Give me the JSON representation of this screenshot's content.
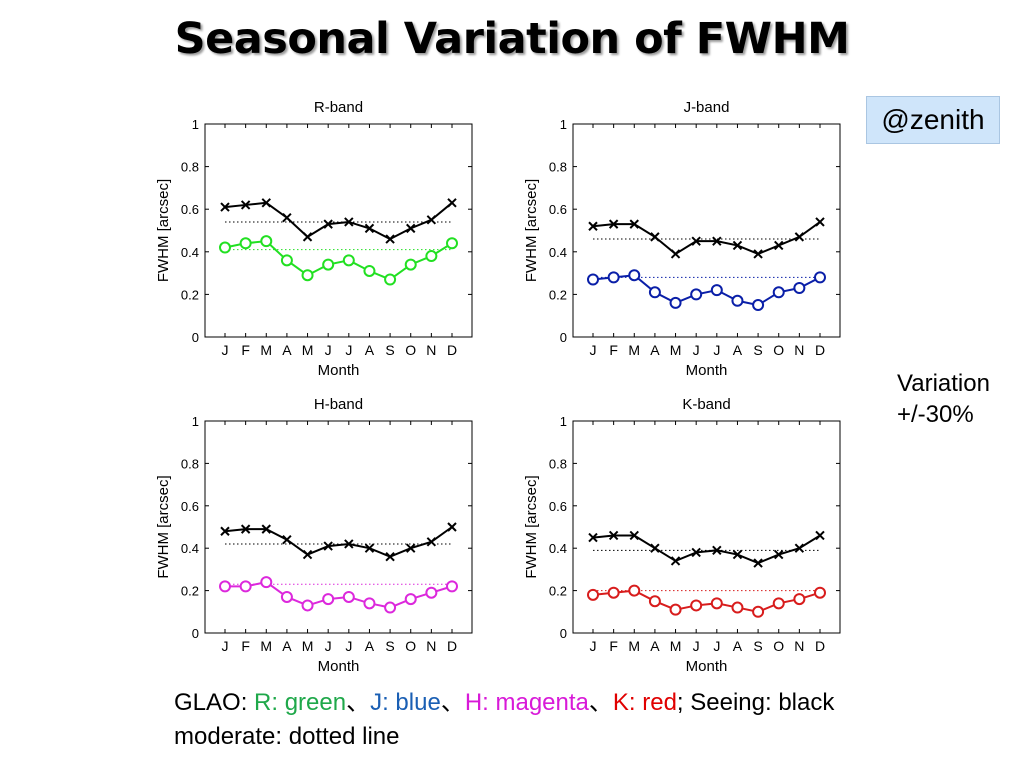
{
  "title": "Seasonal Variation of FWHM",
  "zenith_label": "@zenith",
  "variation": {
    "line1": "Variation",
    "line2": "+/-30%"
  },
  "legend": {
    "prefix": "GLAO: ",
    "r": "R: green",
    "sep1": "、",
    "j": "J: blue",
    "sep2": "、",
    "h": "H: magenta",
    "sep3": "、",
    "k": "K: red",
    "suffix": "; Seeing: black",
    "line2": "moderate:  dotted line"
  },
  "colors": {
    "seeing": "#000000",
    "R": "#22e022",
    "J": "#0a1fa8",
    "H": "#dc28dc",
    "K": "#d81c1c"
  },
  "chart_data": [
    {
      "type": "line",
      "title": "R-band",
      "xlabel": "Month",
      "ylabel": "FWHM [arcsec]",
      "categories": [
        "J",
        "F",
        "M",
        "A",
        "M",
        "J",
        "J",
        "A",
        "S",
        "O",
        "N",
        "D"
      ],
      "ylim": [
        0,
        1
      ],
      "yticks": [
        "0",
        "0.2",
        "0.4",
        "0.6",
        "0.8",
        "1"
      ],
      "series": [
        {
          "role": "seeing",
          "marker": "x",
          "color": "#000000",
          "values": [
            0.61,
            0.62,
            0.63,
            0.56,
            0.47,
            0.53,
            0.54,
            0.51,
            0.46,
            0.51,
            0.55,
            0.63
          ]
        },
        {
          "role": "glao",
          "marker": "o",
          "color": "#22e022",
          "values": [
            0.42,
            0.44,
            0.45,
            0.36,
            0.29,
            0.34,
            0.36,
            0.31,
            0.27,
            0.34,
            0.38,
            0.44
          ]
        }
      ],
      "dotted_lines": [
        {
          "value": 0.54,
          "color": "#000000"
        },
        {
          "value": 0.41,
          "color": "#22e022"
        }
      ]
    },
    {
      "type": "line",
      "title": "J-band",
      "xlabel": "Month",
      "ylabel": "FWHM [arcsec]",
      "categories": [
        "J",
        "F",
        "M",
        "A",
        "M",
        "J",
        "J",
        "A",
        "S",
        "O",
        "N",
        "D"
      ],
      "ylim": [
        0,
        1
      ],
      "yticks": [
        "0",
        "0.2",
        "0.4",
        "0.6",
        "0.8",
        "1"
      ],
      "series": [
        {
          "role": "seeing",
          "marker": "x",
          "color": "#000000",
          "values": [
            0.52,
            0.53,
            0.53,
            0.47,
            0.39,
            0.45,
            0.45,
            0.43,
            0.39,
            0.43,
            0.47,
            0.54
          ]
        },
        {
          "role": "glao",
          "marker": "o",
          "color": "#0a1fa8",
          "values": [
            0.27,
            0.28,
            0.29,
            0.21,
            0.16,
            0.2,
            0.22,
            0.17,
            0.15,
            0.21,
            0.23,
            0.28
          ]
        }
      ],
      "dotted_lines": [
        {
          "value": 0.46,
          "color": "#000000"
        },
        {
          "value": 0.28,
          "color": "#0a1fa8"
        }
      ]
    },
    {
      "type": "line",
      "title": "H-band",
      "xlabel": "Month",
      "ylabel": "FWHM [arcsec]",
      "categories": [
        "J",
        "F",
        "M",
        "A",
        "M",
        "J",
        "J",
        "A",
        "S",
        "O",
        "N",
        "D"
      ],
      "ylim": [
        0,
        1
      ],
      "yticks": [
        "0",
        "0.2",
        "0.4",
        "0.6",
        "0.8",
        "1"
      ],
      "series": [
        {
          "role": "seeing",
          "marker": "x",
          "color": "#000000",
          "values": [
            0.48,
            0.49,
            0.49,
            0.44,
            0.37,
            0.41,
            0.42,
            0.4,
            0.36,
            0.4,
            0.43,
            0.5
          ]
        },
        {
          "role": "glao",
          "marker": "o",
          "color": "#dc28dc",
          "values": [
            0.22,
            0.22,
            0.24,
            0.17,
            0.13,
            0.16,
            0.17,
            0.14,
            0.12,
            0.16,
            0.19,
            0.22
          ]
        }
      ],
      "dotted_lines": [
        {
          "value": 0.42,
          "color": "#000000"
        },
        {
          "value": 0.23,
          "color": "#dc28dc"
        }
      ]
    },
    {
      "type": "line",
      "title": "K-band",
      "xlabel": "Month",
      "ylabel": "FWHM [arcsec]",
      "categories": [
        "J",
        "F",
        "M",
        "A",
        "M",
        "J",
        "J",
        "A",
        "S",
        "O",
        "N",
        "D"
      ],
      "ylim": [
        0,
        1
      ],
      "yticks": [
        "0",
        "0.2",
        "0.4",
        "0.6",
        "0.8",
        "1"
      ],
      "series": [
        {
          "role": "seeing",
          "marker": "x",
          "color": "#000000",
          "values": [
            0.45,
            0.46,
            0.46,
            0.4,
            0.34,
            0.38,
            0.39,
            0.37,
            0.33,
            0.37,
            0.4,
            0.46
          ]
        },
        {
          "role": "glao",
          "marker": "o",
          "color": "#d81c1c",
          "values": [
            0.18,
            0.19,
            0.2,
            0.15,
            0.11,
            0.13,
            0.14,
            0.12,
            0.1,
            0.14,
            0.16,
            0.19
          ]
        }
      ],
      "dotted_lines": [
        {
          "value": 0.39,
          "color": "#000000"
        },
        {
          "value": 0.2,
          "color": "#d81c1c"
        }
      ]
    }
  ]
}
